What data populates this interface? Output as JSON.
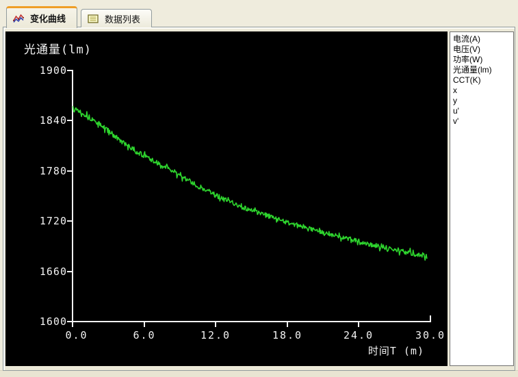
{
  "tabs": [
    {
      "label": "变化曲线"
    },
    {
      "label": "数据列表"
    }
  ],
  "legend": {
    "items": [
      "电流(A)",
      "电压(V)",
      "功率(W)",
      "光通量(lm)",
      "CCT(K)",
      "x",
      "y",
      "u'",
      "v'"
    ]
  },
  "chart_data": {
    "type": "line",
    "title": "光通量(lm)",
    "xlabel": "时间T (m)",
    "ylabel": "光通量(lm)",
    "xlim": [
      0.0,
      30.0
    ],
    "ylim": [
      1600,
      1900
    ],
    "xtick_labels": [
      "0.0",
      "6.0",
      "12.0",
      "18.0",
      "24.0",
      "30.0"
    ],
    "ytick_labels": [
      "1900",
      "1840",
      "1780",
      "1720",
      "1660",
      "1600"
    ],
    "grid": false,
    "legend_position": "right",
    "plot_background": "#000000",
    "axis_color": "#f2f2f2",
    "series": [
      {
        "name": "光通量(lm)",
        "color": "#2ed52e",
        "unit": "lm",
        "noise_amplitude": 3,
        "x_range": [
          0.05,
          29.7
        ],
        "control_points": [
          [
            0,
            1857
          ],
          [
            1,
            1848
          ],
          [
            2,
            1838
          ],
          [
            3,
            1828
          ],
          [
            4,
            1816
          ],
          [
            5,
            1806
          ],
          [
            6,
            1798
          ],
          [
            7,
            1790
          ],
          [
            8,
            1783
          ],
          [
            9,
            1775
          ],
          [
            10,
            1766
          ],
          [
            11,
            1758
          ],
          [
            12,
            1751
          ],
          [
            13,
            1744
          ],
          [
            14,
            1738
          ],
          [
            15,
            1733
          ],
          [
            16,
            1728
          ],
          [
            17,
            1723
          ],
          [
            18,
            1719
          ],
          [
            19,
            1714
          ],
          [
            20,
            1710
          ],
          [
            21,
            1706
          ],
          [
            22,
            1703
          ],
          [
            23,
            1699
          ],
          [
            24,
            1696
          ],
          [
            25,
            1692
          ],
          [
            26,
            1689
          ],
          [
            27,
            1686
          ],
          [
            28,
            1683
          ],
          [
            29,
            1680
          ],
          [
            30,
            1678
          ]
        ]
      }
    ]
  }
}
